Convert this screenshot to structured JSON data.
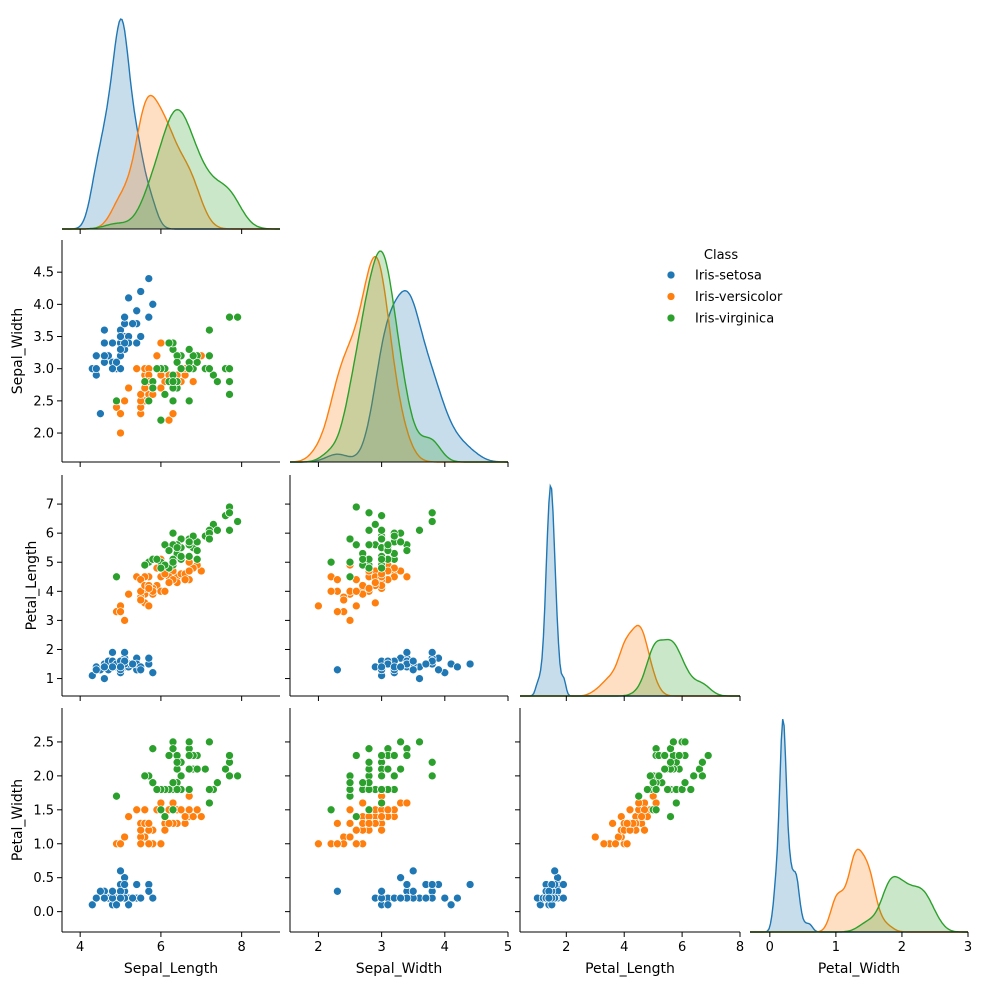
{
  "chart_data": {
    "type": "scatter",
    "title": "",
    "variables": [
      "Sepal_Length",
      "Sepal_Width",
      "Petal_Length",
      "Petal_Width"
    ],
    "axes": {
      "Sepal_Length": {
        "range": [
          3.55,
          8.95
        ],
        "ticks": [
          4,
          6,
          8
        ],
        "tick_labels": [
          "4",
          "6",
          "8"
        ]
      },
      "Sepal_Width": {
        "range": [
          1.55,
          5.0
        ],
        "ticks": [
          2.0,
          2.5,
          3.0,
          3.5,
          4.0,
          4.5
        ],
        "tick_labels": [
          "2.0",
          "2.5",
          "3.0",
          "3.5",
          "4.0",
          "4.5"
        ],
        "x_ticks": [
          2,
          3,
          4,
          5
        ],
        "x_tick_labels": [
          "2",
          "3",
          "4",
          "5"
        ]
      },
      "Petal_Length": {
        "range": [
          0.4,
          8.0
        ],
        "ticks": [
          1,
          2,
          3,
          4,
          5,
          6,
          7
        ],
        "tick_labels": [
          "1",
          "2",
          "3",
          "4",
          "5",
          "6",
          "7"
        ],
        "x_ticks": [
          2,
          4,
          6,
          8
        ],
        "x_tick_labels": [
          "2",
          "4",
          "6",
          "8"
        ]
      },
      "Petal_Width": {
        "range": [
          -0.3,
          3.0
        ],
        "ticks": [
          0.0,
          0.5,
          1.0,
          1.5,
          2.0,
          2.5
        ],
        "tick_labels": [
          "0.0",
          "0.5",
          "1.0",
          "1.5",
          "2.0",
          "2.5"
        ],
        "x_ticks": [
          0,
          1,
          2,
          3
        ],
        "x_tick_labels": [
          "0",
          "1",
          "2",
          "3"
        ]
      }
    },
    "legend": {
      "title": "Class",
      "position": "top-right",
      "entries": [
        {
          "name": "Iris-setosa",
          "color": "#1f77b4"
        },
        {
          "name": "Iris-versicolor",
          "color": "#ff7f0e"
        },
        {
          "name": "Iris-virginica",
          "color": "#2ca02c"
        }
      ]
    },
    "series": [
      {
        "name": "Iris-setosa",
        "color": "#1f77b4",
        "points": [
          [
            5.1,
            3.5,
            1.4,
            0.2
          ],
          [
            4.9,
            3.0,
            1.4,
            0.2
          ],
          [
            4.7,
            3.2,
            1.3,
            0.2
          ],
          [
            4.6,
            3.1,
            1.5,
            0.2
          ],
          [
            5.0,
            3.6,
            1.4,
            0.2
          ],
          [
            5.4,
            3.9,
            1.7,
            0.4
          ],
          [
            4.6,
            3.4,
            1.4,
            0.3
          ],
          [
            5.0,
            3.4,
            1.5,
            0.2
          ],
          [
            4.4,
            2.9,
            1.4,
            0.2
          ],
          [
            4.9,
            3.1,
            1.5,
            0.1
          ],
          [
            5.4,
            3.7,
            1.5,
            0.2
          ],
          [
            4.8,
            3.4,
            1.6,
            0.2
          ],
          [
            4.8,
            3.0,
            1.4,
            0.1
          ],
          [
            4.3,
            3.0,
            1.1,
            0.1
          ],
          [
            5.8,
            4.0,
            1.2,
            0.2
          ],
          [
            5.7,
            4.4,
            1.5,
            0.4
          ],
          [
            5.4,
            3.9,
            1.3,
            0.4
          ],
          [
            5.1,
            3.5,
            1.4,
            0.3
          ],
          [
            5.7,
            3.8,
            1.7,
            0.3
          ],
          [
            5.1,
            3.8,
            1.5,
            0.3
          ],
          [
            5.4,
            3.4,
            1.7,
            0.2
          ],
          [
            5.1,
            3.7,
            1.5,
            0.4
          ],
          [
            4.6,
            3.6,
            1.0,
            0.2
          ],
          [
            5.1,
            3.3,
            1.7,
            0.5
          ],
          [
            4.8,
            3.4,
            1.9,
            0.2
          ],
          [
            5.0,
            3.0,
            1.6,
            0.2
          ],
          [
            5.0,
            3.4,
            1.6,
            0.4
          ],
          [
            5.2,
            3.5,
            1.5,
            0.2
          ],
          [
            5.2,
            3.4,
            1.4,
            0.2
          ],
          [
            4.7,
            3.2,
            1.6,
            0.2
          ],
          [
            4.8,
            3.1,
            1.6,
            0.2
          ],
          [
            5.4,
            3.4,
            1.5,
            0.4
          ],
          [
            5.2,
            4.1,
            1.5,
            0.1
          ],
          [
            5.5,
            4.2,
            1.4,
            0.2
          ],
          [
            4.9,
            3.1,
            1.5,
            0.1
          ],
          [
            5.0,
            3.2,
            1.2,
            0.2
          ],
          [
            5.5,
            3.5,
            1.3,
            0.2
          ],
          [
            4.9,
            3.1,
            1.5,
            0.1
          ],
          [
            4.4,
            3.0,
            1.3,
            0.2
          ],
          [
            5.1,
            3.4,
            1.5,
            0.2
          ],
          [
            5.0,
            3.5,
            1.3,
            0.3
          ],
          [
            4.5,
            2.3,
            1.3,
            0.3
          ],
          [
            4.4,
            3.2,
            1.3,
            0.2
          ],
          [
            5.0,
            3.5,
            1.6,
            0.6
          ],
          [
            5.1,
            3.8,
            1.9,
            0.4
          ],
          [
            4.8,
            3.0,
            1.4,
            0.3
          ],
          [
            5.1,
            3.8,
            1.6,
            0.2
          ],
          [
            4.6,
            3.2,
            1.4,
            0.2
          ],
          [
            5.3,
            3.7,
            1.5,
            0.2
          ],
          [
            5.0,
            3.3,
            1.4,
            0.2
          ]
        ]
      },
      {
        "name": "Iris-versicolor",
        "color": "#ff7f0e",
        "points": [
          [
            7.0,
            3.2,
            4.7,
            1.4
          ],
          [
            6.4,
            3.2,
            4.5,
            1.5
          ],
          [
            6.9,
            3.1,
            4.9,
            1.5
          ],
          [
            5.5,
            2.3,
            4.0,
            1.3
          ],
          [
            6.5,
            2.8,
            4.6,
            1.5
          ],
          [
            5.7,
            2.8,
            4.5,
            1.3
          ],
          [
            6.3,
            3.3,
            4.7,
            1.6
          ],
          [
            4.9,
            2.4,
            3.3,
            1.0
          ],
          [
            6.6,
            2.9,
            4.6,
            1.3
          ],
          [
            5.2,
            2.7,
            3.9,
            1.4
          ],
          [
            5.0,
            2.0,
            3.5,
            1.0
          ],
          [
            5.9,
            3.0,
            4.2,
            1.5
          ],
          [
            6.0,
            2.2,
            4.0,
            1.0
          ],
          [
            6.1,
            2.9,
            4.7,
            1.4
          ],
          [
            5.6,
            2.9,
            3.6,
            1.3
          ],
          [
            6.7,
            3.1,
            4.4,
            1.4
          ],
          [
            5.6,
            3.0,
            4.5,
            1.5
          ],
          [
            5.8,
            2.7,
            4.1,
            1.0
          ],
          [
            6.2,
            2.2,
            4.5,
            1.5
          ],
          [
            5.6,
            2.5,
            3.9,
            1.1
          ],
          [
            5.9,
            3.2,
            4.8,
            1.8
          ],
          [
            6.1,
            2.8,
            4.0,
            1.3
          ],
          [
            6.3,
            2.5,
            4.9,
            1.5
          ],
          [
            6.1,
            2.8,
            4.7,
            1.2
          ],
          [
            6.4,
            2.9,
            4.3,
            1.3
          ],
          [
            6.6,
            3.0,
            4.4,
            1.4
          ],
          [
            6.8,
            2.8,
            4.8,
            1.4
          ],
          [
            6.7,
            3.0,
            5.0,
            1.7
          ],
          [
            6.0,
            2.9,
            4.5,
            1.5
          ],
          [
            5.7,
            2.6,
            3.5,
            1.0
          ],
          [
            5.5,
            2.4,
            3.8,
            1.1
          ],
          [
            5.5,
            2.4,
            3.7,
            1.0
          ],
          [
            5.8,
            2.7,
            3.9,
            1.2
          ],
          [
            6.0,
            2.7,
            5.1,
            1.6
          ],
          [
            5.4,
            3.0,
            4.5,
            1.5
          ],
          [
            6.0,
            3.4,
            4.5,
            1.6
          ],
          [
            6.7,
            3.1,
            4.7,
            1.5
          ],
          [
            6.3,
            2.3,
            4.4,
            1.3
          ],
          [
            5.6,
            3.0,
            4.1,
            1.3
          ],
          [
            5.5,
            2.5,
            4.0,
            1.3
          ],
          [
            5.5,
            2.6,
            4.4,
            1.2
          ],
          [
            6.1,
            3.0,
            4.6,
            1.4
          ],
          [
            5.8,
            2.6,
            4.0,
            1.2
          ],
          [
            5.0,
            2.3,
            3.3,
            1.0
          ],
          [
            5.6,
            2.7,
            4.2,
            1.3
          ],
          [
            5.7,
            3.0,
            4.2,
            1.2
          ],
          [
            5.7,
            2.9,
            4.2,
            1.3
          ],
          [
            6.2,
            2.9,
            4.3,
            1.3
          ],
          [
            5.1,
            2.5,
            3.0,
            1.1
          ],
          [
            5.7,
            2.8,
            4.1,
            1.3
          ]
        ]
      },
      {
        "name": "Iris-virginica",
        "color": "#2ca02c",
        "points": [
          [
            6.3,
            3.3,
            6.0,
            2.5
          ],
          [
            5.8,
            2.7,
            5.1,
            1.9
          ],
          [
            7.1,
            3.0,
            5.9,
            2.1
          ],
          [
            6.3,
            2.9,
            5.6,
            1.8
          ],
          [
            6.5,
            3.0,
            5.8,
            2.2
          ],
          [
            7.6,
            3.0,
            6.6,
            2.1
          ],
          [
            4.9,
            2.5,
            4.5,
            1.7
          ],
          [
            7.3,
            2.9,
            6.3,
            1.8
          ],
          [
            6.7,
            2.5,
            5.8,
            1.8
          ],
          [
            7.2,
            3.6,
            6.1,
            2.5
          ],
          [
            6.5,
            3.2,
            5.1,
            2.0
          ],
          [
            6.4,
            2.7,
            5.3,
            1.9
          ],
          [
            6.8,
            3.0,
            5.5,
            2.1
          ],
          [
            5.7,
            2.5,
            5.0,
            2.0
          ],
          [
            5.8,
            2.8,
            5.1,
            2.4
          ],
          [
            6.4,
            3.2,
            5.3,
            2.3
          ],
          [
            6.5,
            3.0,
            5.5,
            1.8
          ],
          [
            7.7,
            3.8,
            6.7,
            2.2
          ],
          [
            7.7,
            2.6,
            6.9,
            2.3
          ],
          [
            6.0,
            2.2,
            5.0,
            1.5
          ],
          [
            6.9,
            3.2,
            5.7,
            2.3
          ],
          [
            5.6,
            2.8,
            4.9,
            2.0
          ],
          [
            7.7,
            2.8,
            6.7,
            2.0
          ],
          [
            6.3,
            2.7,
            4.9,
            1.8
          ],
          [
            6.7,
            3.3,
            5.7,
            2.1
          ],
          [
            7.2,
            3.2,
            6.0,
            1.8
          ],
          [
            6.2,
            2.8,
            4.8,
            1.8
          ],
          [
            6.1,
            3.0,
            4.9,
            1.8
          ],
          [
            6.4,
            2.8,
            5.6,
            2.1
          ],
          [
            7.2,
            3.0,
            5.8,
            1.6
          ],
          [
            7.4,
            2.8,
            6.1,
            1.9
          ],
          [
            7.9,
            3.8,
            6.4,
            2.0
          ],
          [
            6.4,
            2.8,
            5.6,
            2.2
          ],
          [
            6.3,
            2.8,
            5.1,
            1.5
          ],
          [
            6.1,
            2.6,
            5.6,
            1.4
          ],
          [
            7.7,
            3.0,
            6.1,
            2.3
          ],
          [
            6.3,
            3.4,
            5.6,
            2.4
          ],
          [
            6.4,
            3.1,
            5.5,
            1.8
          ],
          [
            6.0,
            3.0,
            4.8,
            1.8
          ],
          [
            6.9,
            3.1,
            5.4,
            2.1
          ],
          [
            6.7,
            3.1,
            5.6,
            2.4
          ],
          [
            6.9,
            3.1,
            5.1,
            2.3
          ],
          [
            5.8,
            2.7,
            5.1,
            1.9
          ],
          [
            6.8,
            3.2,
            5.9,
            2.3
          ],
          [
            6.7,
            3.3,
            5.7,
            2.5
          ],
          [
            6.7,
            3.0,
            5.2,
            2.3
          ],
          [
            6.3,
            2.5,
            5.0,
            1.9
          ],
          [
            6.5,
            3.0,
            5.2,
            2.0
          ],
          [
            6.2,
            3.4,
            5.4,
            2.3
          ],
          [
            5.9,
            3.0,
            5.1,
            1.8
          ]
        ]
      }
    ]
  }
}
